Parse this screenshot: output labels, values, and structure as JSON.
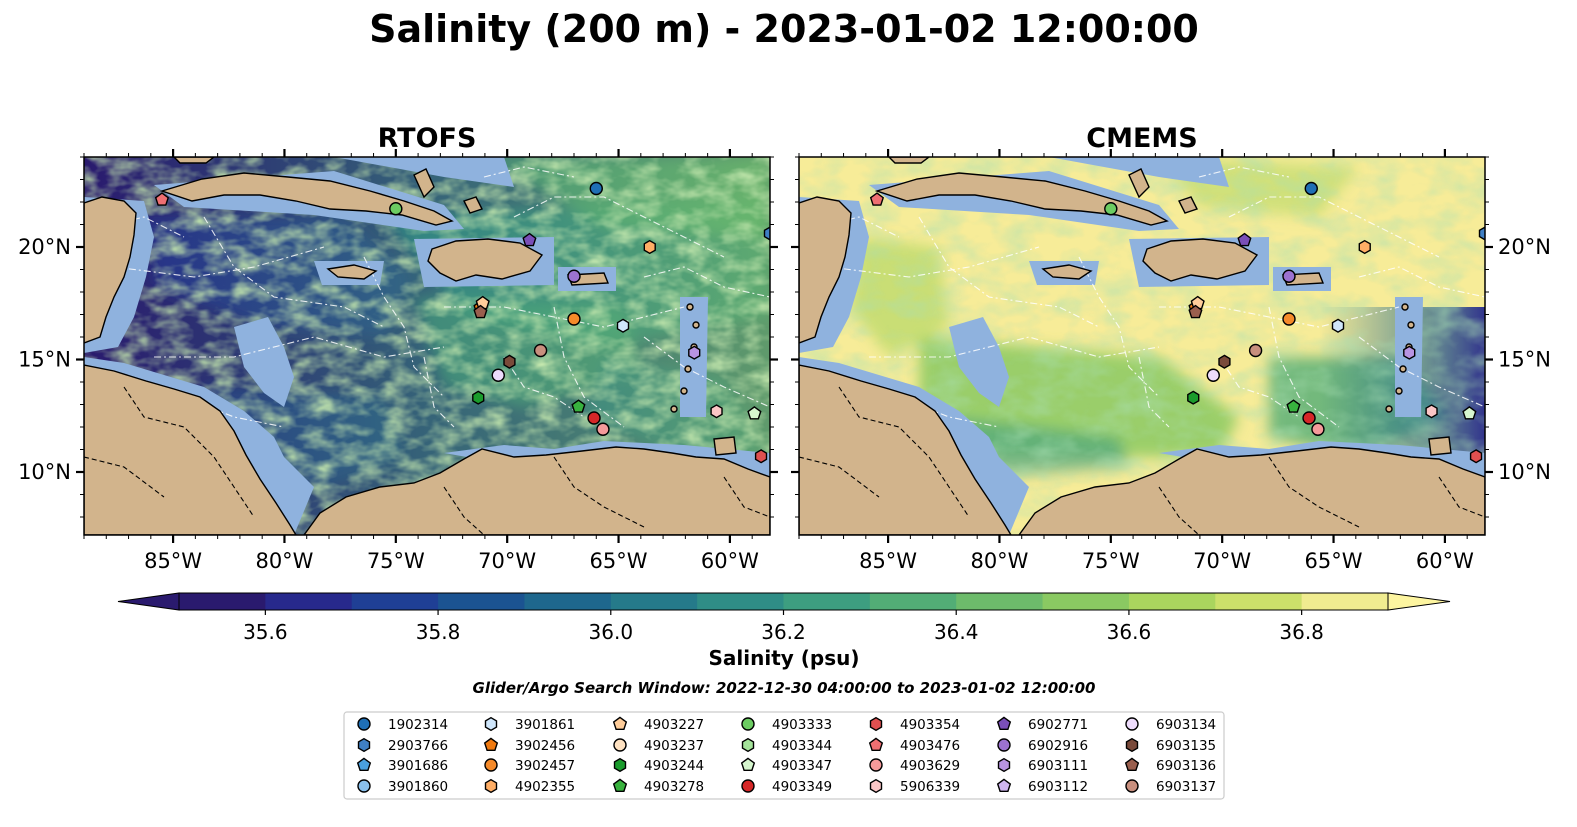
{
  "figure": {
    "title": "Salinity (200 m) - 2023-01-02 12:00:00",
    "search_window": "Glider/Argo Search Window: 2022-12-30 04:00:00 to 2023-01-02 12:00:00"
  },
  "map": {
    "lon_range": [
      -89,
      -58.2
    ],
    "lat_range": [
      7.2,
      24.0
    ],
    "lon_ticks": [
      -85,
      -80,
      -75,
      -70,
      -65,
      -60
    ],
    "lon_tick_labels": [
      "85°W",
      "80°W",
      "75°W",
      "70°W",
      "65°W",
      "60°W"
    ],
    "lat_ticks": [
      10,
      15,
      20
    ],
    "lat_tick_labels": [
      "10°N",
      "15°N",
      "20°N"
    ],
    "colors": {
      "land": "#d2b48c",
      "shallow_water": "#8fb2de"
    }
  },
  "panels": [
    {
      "title": "RTOFS"
    },
    {
      "title": "CMEMS"
    }
  ],
  "colorbar": {
    "label": "Salinity (psu)",
    "min": 35.5,
    "max": 36.9,
    "step": 0.1,
    "extend": "both",
    "tick_values": [
      35.6,
      35.8,
      36.0,
      36.2,
      36.4,
      36.6,
      36.8
    ],
    "tick_labels": [
      "35.6",
      "35.8",
      "36.0",
      "36.2",
      "36.4",
      "36.6",
      "36.8"
    ],
    "colors": [
      "#2a1a6e",
      "#27298c",
      "#1f3f95",
      "#1b5391",
      "#1e678d",
      "#257a8a",
      "#2f8d86",
      "#3d9e80",
      "#52ad76",
      "#6dbb6b",
      "#8ac962",
      "#aad55e",
      "#cce06a",
      "#f0ec90"
    ]
  },
  "legend": {
    "columns": [
      [
        {
          "id": "1902314",
          "shape": "circle",
          "color": "#1f6fb5"
        },
        {
          "id": "2903766",
          "shape": "hexagon",
          "color": "#3f7fc4"
        },
        {
          "id": "3901686",
          "shape": "pentagon",
          "color": "#4aa0de"
        },
        {
          "id": "3901860",
          "shape": "circle",
          "color": "#8ac0ec"
        }
      ],
      [
        {
          "id": "3901861",
          "shape": "hexagon",
          "color": "#cfe6fb"
        },
        {
          "id": "3902456",
          "shape": "pentagon",
          "color": "#f07a10"
        },
        {
          "id": "3902457",
          "shape": "circle",
          "color": "#f58a2a"
        },
        {
          "id": "4902355",
          "shape": "hexagon",
          "color": "#ffae66"
        }
      ],
      [
        {
          "id": "4903227",
          "shape": "pentagon",
          "color": "#ffcd9a"
        },
        {
          "id": "4903237",
          "shape": "circle",
          "color": "#ffe2c2"
        },
        {
          "id": "4903244",
          "shape": "hexagon",
          "color": "#1a9c2c"
        },
        {
          "id": "4903278",
          "shape": "pentagon",
          "color": "#38b23e"
        }
      ],
      [
        {
          "id": "4903333",
          "shape": "circle",
          "color": "#6ccc62"
        },
        {
          "id": "4903344",
          "shape": "hexagon",
          "color": "#a4e39a"
        },
        {
          "id": "4903347",
          "shape": "pentagon",
          "color": "#d6f6ce"
        },
        {
          "id": "4903349",
          "shape": "circle",
          "color": "#d62728"
        }
      ],
      [
        {
          "id": "4903354",
          "shape": "hexagon",
          "color": "#e05050"
        },
        {
          "id": "4903476",
          "shape": "pentagon",
          "color": "#ef6f72"
        },
        {
          "id": "4903629",
          "shape": "circle",
          "color": "#f59a9a"
        },
        {
          "id": "5906339",
          "shape": "hexagon",
          "color": "#fbc6c6"
        }
      ],
      [
        {
          "id": "6902771",
          "shape": "pentagon",
          "color": "#7a4fb8"
        },
        {
          "id": "6902916",
          "shape": "circle",
          "color": "#9c72d0"
        },
        {
          "id": "6903111",
          "shape": "hexagon",
          "color": "#b894e2"
        },
        {
          "id": "6903112",
          "shape": "pentagon",
          "color": "#d0b6f0"
        }
      ],
      [
        {
          "id": "6903134",
          "shape": "circle",
          "color": "#eedcfc"
        },
        {
          "id": "6903135",
          "shape": "hexagon",
          "color": "#7a4a3a"
        },
        {
          "id": "6903136",
          "shape": "pentagon",
          "color": "#9a5f4e"
        },
        {
          "id": "6903137",
          "shape": "circle",
          "color": "#c88f7e"
        }
      ]
    ]
  },
  "platforms": [
    {
      "id": "1902314",
      "lon": -66.0,
      "lat": 22.6
    },
    {
      "id": "2903766",
      "lon": -58.2,
      "lat": 20.6
    },
    {
      "id": "3901861",
      "lon": -64.8,
      "lat": 16.5
    },
    {
      "id": "3902456",
      "lon": -71.2,
      "lat": 17.3
    },
    {
      "id": "3902457",
      "lon": -67.0,
      "lat": 16.8
    },
    {
      "id": "4902355",
      "lon": -63.6,
      "lat": 20.0
    },
    {
      "id": "4903227",
      "lon": -71.1,
      "lat": 17.5
    },
    {
      "id": "4903244",
      "lon": -71.3,
      "lat": 13.3
    },
    {
      "id": "4903278",
      "lon": -66.8,
      "lat": 12.9
    },
    {
      "id": "4903333",
      "lon": -75.0,
      "lat": 21.7
    },
    {
      "id": "4903347",
      "lon": -58.9,
      "lat": 12.6
    },
    {
      "id": "4903349",
      "lon": -66.1,
      "lat": 12.4
    },
    {
      "id": "4903354",
      "lon": -58.6,
      "lat": 10.7
    },
    {
      "id": "4903476",
      "lon": -85.5,
      "lat": 22.1
    },
    {
      "id": "4903629",
      "lon": -65.7,
      "lat": 11.9
    },
    {
      "id": "5906339",
      "lon": -60.6,
      "lat": 12.7
    },
    {
      "id": "6902771",
      "lon": -69.0,
      "lat": 20.3
    },
    {
      "id": "6902916",
      "lon": -67.0,
      "lat": 18.7
    },
    {
      "id": "6903111",
      "lon": -61.6,
      "lat": 15.3
    },
    {
      "id": "6903134",
      "lon": -70.4,
      "lat": 14.3
    },
    {
      "id": "6903135",
      "lon": -69.9,
      "lat": 14.9
    },
    {
      "id": "6903136",
      "lon": -71.2,
      "lat": 17.1
    },
    {
      "id": "6903137",
      "lon": -68.5,
      "lat": 15.4
    }
  ]
}
